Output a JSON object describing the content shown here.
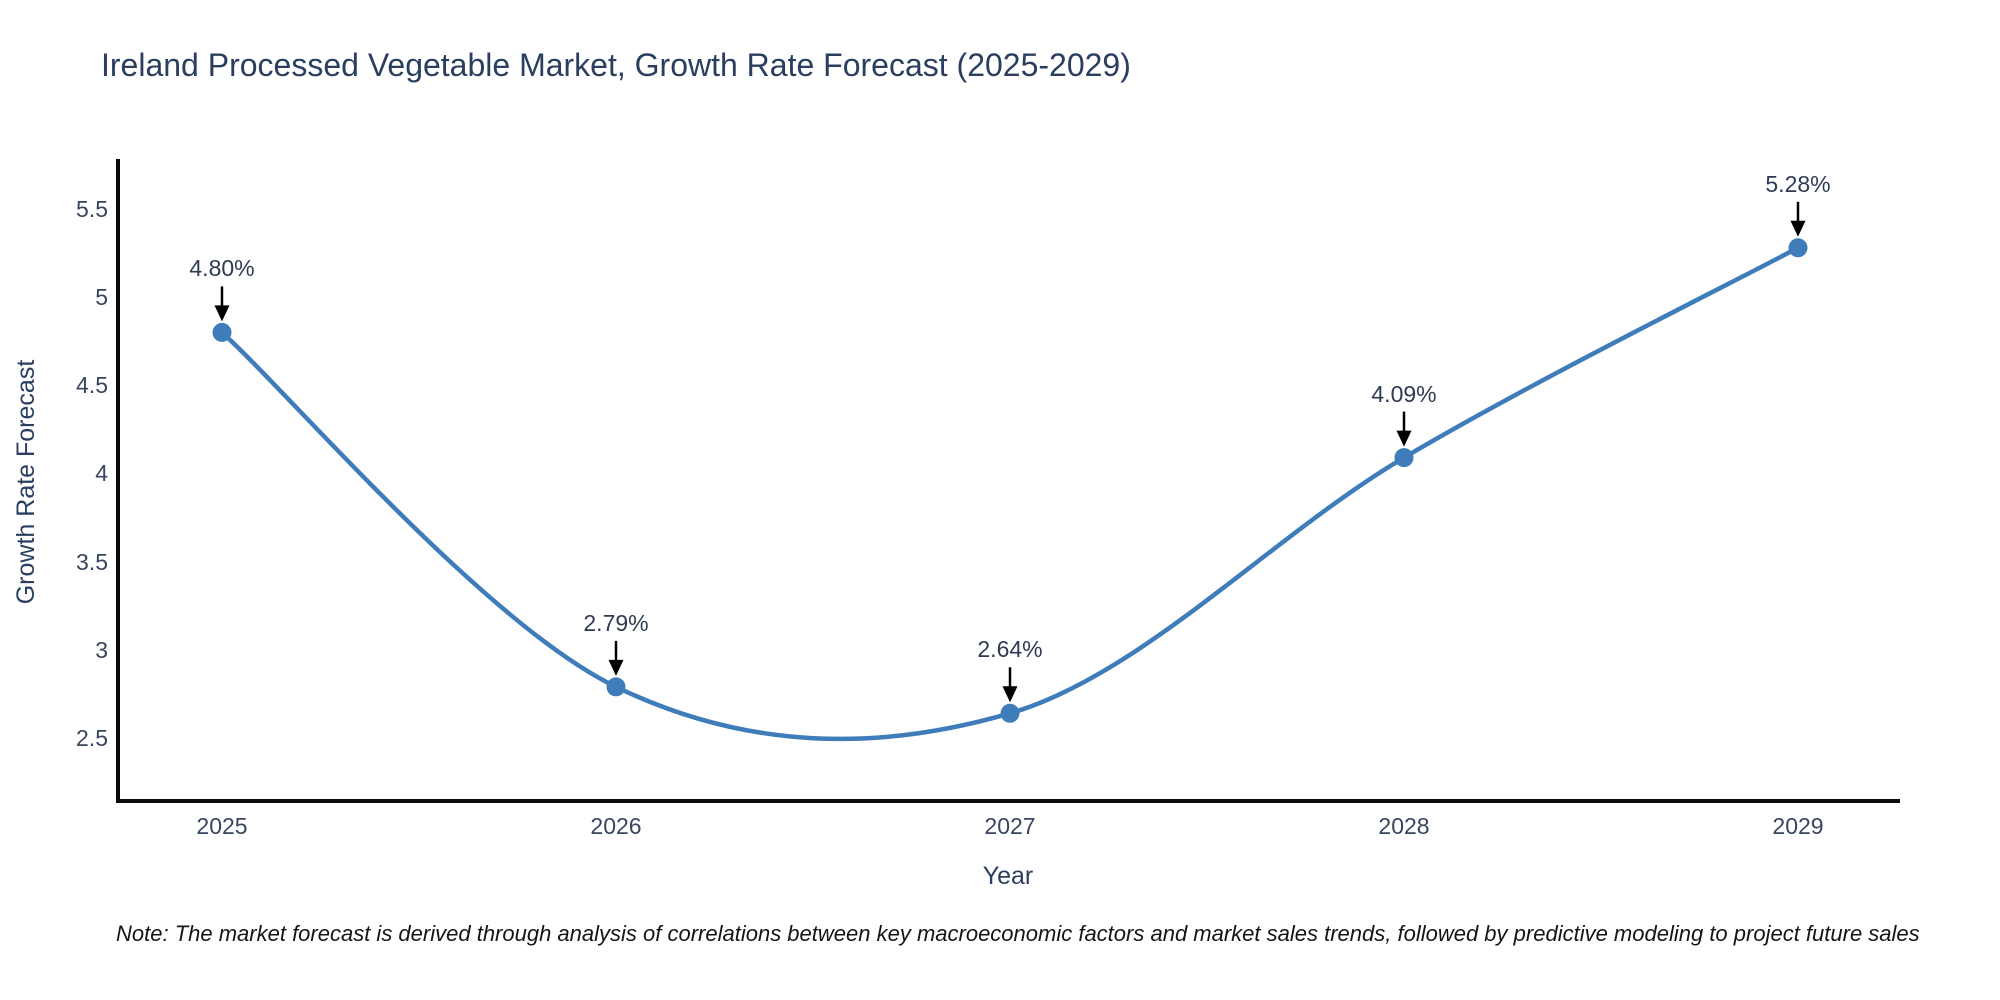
{
  "title": "Ireland Processed Vegetable Market, Growth Rate Forecast (2025-2029)",
  "note": "Note: The market forecast is derived through analysis of correlations between key macroeconomic factors and market sales trends, followed by predictive modeling to project future sales",
  "chart_data": {
    "type": "line",
    "line_shape": "spline",
    "title": "Ireland Processed Vegetable Market, Growth Rate Forecast (2025-2029)",
    "xlabel": "Year",
    "ylabel": "Growth Rate Forecast",
    "categories": [
      "2025",
      "2026",
      "2027",
      "2028",
      "2029"
    ],
    "series": [
      {
        "name": "Growth Rate Forecast",
        "values": [
          4.8,
          2.79,
          2.64,
          4.09,
          5.28
        ],
        "point_labels": [
          "4.80%",
          "2.79%",
          "2.64%",
          "4.09%",
          "5.28%"
        ]
      }
    ],
    "y_tick_values": [
      5.5,
      5,
      4.5,
      4,
      3.5,
      3,
      2.5
    ],
    "y_tick_labels": [
      "5.5",
      "5",
      "4.5",
      "4",
      "3.5",
      "3",
      "2.5"
    ],
    "ylim": [
      2.15,
      5.78
    ],
    "grid": false,
    "legend_position": "none",
    "markers": true,
    "annotations_have_arrows": true,
    "colors": {
      "line": "#3e7cba",
      "marker": "#3e7cba",
      "axis_line": "#0b0b0b",
      "arrow": "#000000",
      "title_text": "#2a3f5f",
      "tick_text": "#39455e",
      "note_text": "#151515",
      "background": "#ffffff"
    }
  }
}
